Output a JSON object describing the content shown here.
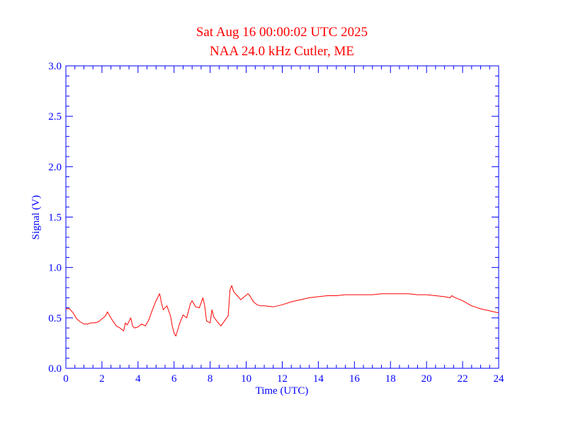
{
  "chart_data": {
    "type": "line",
    "title": "Sat Aug 16 00:00:02 UTC 2025",
    "subtitle": "NAA 24.0 kHz Cutler, ME",
    "xlabel": "Time (UTC)",
    "ylabel": "Signal (V)",
    "xlim": [
      0,
      24
    ],
    "ylim": [
      0.0,
      3.0
    ],
    "x_ticks": [
      0,
      2,
      4,
      6,
      8,
      10,
      12,
      14,
      16,
      18,
      20,
      22,
      24
    ],
    "x_tick_labels": [
      "0",
      "2",
      "4",
      "6",
      "8",
      "10",
      "12",
      "14",
      "16",
      "18",
      "20",
      "22",
      "24"
    ],
    "y_ticks": [
      0.0,
      0.5,
      1.0,
      1.5,
      2.0,
      2.5,
      3.0
    ],
    "y_tick_labels": [
      "0.0",
      "0.5",
      "1.0",
      "1.5",
      "2.0",
      "2.5",
      "3.0"
    ],
    "grid": false,
    "colors": {
      "title": "#ff0000",
      "axes": "#0000ff",
      "line": "#ff0000"
    },
    "series": [
      {
        "x": [
          0.0,
          0.2,
          0.4,
          0.6,
          0.8,
          1.0,
          1.2,
          1.4,
          1.6,
          1.8,
          2.0,
          2.2,
          2.3,
          2.4,
          2.6,
          2.8,
          3.0,
          3.2,
          3.3,
          3.4,
          3.6,
          3.7,
          3.8,
          4.0,
          4.2,
          4.4,
          4.6,
          4.8,
          5.0,
          5.2,
          5.3,
          5.4,
          5.6,
          5.8,
          5.9,
          6.0,
          6.1,
          6.3,
          6.5,
          6.7,
          6.9,
          7.0,
          7.2,
          7.4,
          7.6,
          7.7,
          7.8,
          8.0,
          8.1,
          8.2,
          8.4,
          8.6,
          8.8,
          9.0,
          9.1,
          9.2,
          9.3,
          9.5,
          9.7,
          9.9,
          10.1,
          10.2,
          10.4,
          10.6,
          10.8,
          11.0,
          11.5,
          12.0,
          12.5,
          13.0,
          13.5,
          14.0,
          14.5,
          15.0,
          15.5,
          16.0,
          16.5,
          17.0,
          17.5,
          18.0,
          18.5,
          19.0,
          19.5,
          20.0,
          20.5,
          21.0,
          21.3,
          21.4,
          21.6,
          22.0,
          22.5,
          23.0,
          23.5,
          24.0
        ],
        "y": [
          0.59,
          0.59,
          0.55,
          0.49,
          0.46,
          0.44,
          0.44,
          0.45,
          0.45,
          0.46,
          0.49,
          0.52,
          0.56,
          0.53,
          0.47,
          0.42,
          0.4,
          0.37,
          0.45,
          0.43,
          0.5,
          0.42,
          0.4,
          0.41,
          0.44,
          0.42,
          0.48,
          0.58,
          0.67,
          0.74,
          0.65,
          0.58,
          0.62,
          0.52,
          0.42,
          0.35,
          0.32,
          0.44,
          0.53,
          0.5,
          0.64,
          0.67,
          0.61,
          0.6,
          0.7,
          0.62,
          0.47,
          0.45,
          0.58,
          0.51,
          0.46,
          0.42,
          0.47,
          0.52,
          0.78,
          0.82,
          0.76,
          0.72,
          0.68,
          0.71,
          0.74,
          0.72,
          0.66,
          0.63,
          0.62,
          0.62,
          0.61,
          0.63,
          0.66,
          0.68,
          0.7,
          0.71,
          0.72,
          0.72,
          0.73,
          0.73,
          0.73,
          0.73,
          0.74,
          0.74,
          0.74,
          0.74,
          0.73,
          0.73,
          0.72,
          0.71,
          0.7,
          0.72,
          0.7,
          0.67,
          0.62,
          0.59,
          0.57,
          0.55
        ]
      }
    ]
  }
}
